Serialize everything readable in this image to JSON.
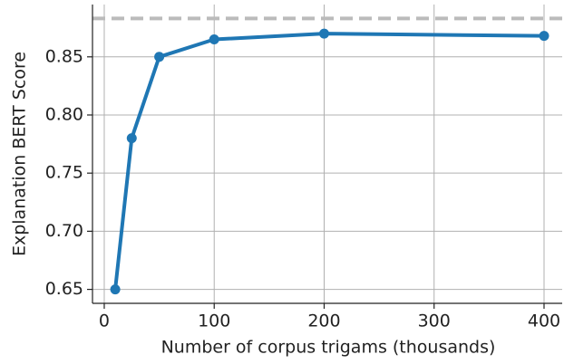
{
  "chart_data": {
    "type": "line",
    "x_label": "Number of corpus trigams (thousands)",
    "y_label": "Explanation BERT Score",
    "x": [
      10,
      25,
      50,
      100,
      200,
      400
    ],
    "values": [
      0.65,
      0.78,
      0.85,
      0.865,
      0.87,
      0.868
    ],
    "color": "#1f77b4",
    "xlim": [
      -10.7,
      416.5
    ],
    "xticks": [
      0,
      100,
      200,
      300,
      400
    ],
    "ylim": [
      0.638,
      0.895
    ],
    "yticks": [
      0.65,
      {
        "value": 0.7,
        "label": "0.70"
      },
      0.75,
      {
        "value": 0.8,
        "label": "0.80"
      },
      0.85
    ],
    "grid": true,
    "reference_lines": [
      {
        "value": 0.883,
        "color": "#bbbbbb",
        "dashed": true
      }
    ]
  }
}
